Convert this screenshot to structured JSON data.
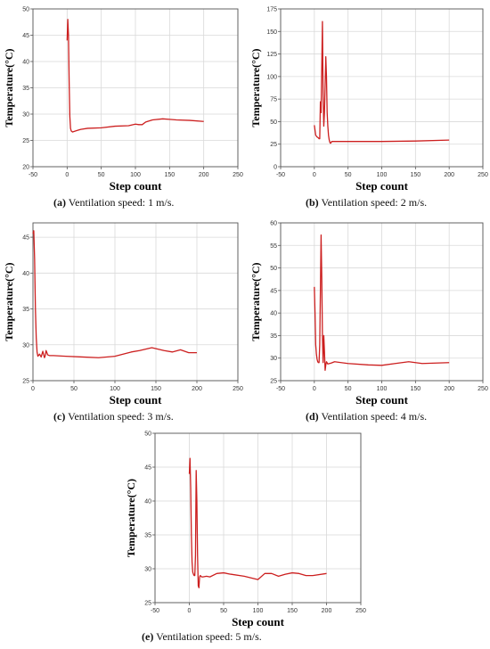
{
  "panels": [
    {
      "caption_letter": "(a)",
      "caption_text": " Ventilation speed: 1 m/s."
    },
    {
      "caption_letter": "(b)",
      "caption_text": " Ventilation speed: 2 m/s."
    },
    {
      "caption_letter": "(c)",
      "caption_text": " Ventilation speed: 3 m/s."
    },
    {
      "caption_letter": "(d)",
      "caption_text": " Ventilation speed: 4 m/s."
    },
    {
      "caption_letter": "(e)",
      "caption_text": " Ventilation speed: 5 m/s."
    }
  ],
  "chart_data": [
    {
      "type": "line",
      "xlabel": "Step count",
      "ylabel": "Temperature(°C)",
      "xlim": [
        -50,
        250
      ],
      "xticks": [
        -50,
        0,
        50,
        100,
        150,
        200,
        250
      ],
      "ylim": [
        20,
        50
      ],
      "yticks": [
        20,
        25,
        30,
        35,
        40,
        45,
        50
      ],
      "grid": true,
      "line_color": "#cc1f1f",
      "series": [
        {
          "x": [
            0,
            1,
            2,
            3,
            4,
            5,
            6,
            8,
            10,
            15,
            20,
            30,
            50,
            70,
            90,
            100,
            105,
            110,
            115,
            125,
            140,
            150,
            160,
            180,
            200
          ],
          "y": [
            44,
            48,
            45,
            36,
            29.5,
            27.3,
            26.8,
            26.6,
            26.7,
            26.9,
            27.1,
            27.3,
            27.4,
            27.7,
            27.8,
            28.1,
            28.0,
            28.0,
            28.5,
            28.9,
            29.1,
            29.0,
            28.9,
            28.8,
            28.6
          ]
        }
      ]
    },
    {
      "type": "line",
      "xlabel": "Step count",
      "ylabel": "Temperature(°C)",
      "xlim": [
        -50,
        250
      ],
      "xticks": [
        -50,
        0,
        50,
        100,
        150,
        200,
        250
      ],
      "ylim": [
        0,
        175
      ],
      "yticks": [
        0,
        25,
        50,
        75,
        100,
        125,
        150,
        175
      ],
      "grid": true,
      "line_color": "#cc1f1f",
      "series": [
        {
          "x": [
            0,
            2,
            4,
            6,
            7,
            8,
            9,
            10,
            11,
            12,
            13,
            14,
            15,
            16,
            17,
            18,
            19,
            20,
            21,
            22,
            23,
            24,
            26,
            30,
            50,
            100,
            150,
            200
          ],
          "y": [
            46,
            35,
            33,
            32,
            31,
            31,
            72,
            60,
            110,
            161,
            80,
            45,
            60,
            90,
            122,
            100,
            60,
            45,
            35,
            30,
            27,
            26,
            28,
            28,
            28,
            28,
            28.5,
            29.5
          ]
        }
      ]
    },
    {
      "type": "line",
      "xlabel": "Step count",
      "ylabel": "Temperature(°C)",
      "xlim": [
        0,
        250
      ],
      "xticks": [
        0,
        50,
        100,
        150,
        200,
        250
      ],
      "ylim": [
        25,
        47
      ],
      "yticks": [
        25,
        30,
        35,
        40,
        45
      ],
      "grid": true,
      "line_color": "#cc1f1f",
      "series": [
        {
          "x": [
            0,
            1,
            2,
            3,
            4,
            5,
            6,
            8,
            10,
            12,
            14,
            15,
            16,
            18,
            20,
            25,
            40,
            60,
            80,
            100,
            120,
            130,
            145,
            160,
            170,
            180,
            190,
            200
          ],
          "y": [
            45.5,
            45.9,
            42,
            35,
            31,
            29,
            28.4,
            28.7,
            28.3,
            29.1,
            28.2,
            28.5,
            29.2,
            28.6,
            28.5,
            28.5,
            28.4,
            28.3,
            28.2,
            28.4,
            29.0,
            29.2,
            29.6,
            29.2,
            29.0,
            29.3,
            28.9,
            28.9
          ]
        }
      ]
    },
    {
      "type": "line",
      "xlabel": "Step count",
      "ylabel": "Temperature(°C)",
      "xlim": [
        -50,
        250
      ],
      "xticks": [
        -50,
        0,
        50,
        100,
        150,
        200,
        250
      ],
      "ylim": [
        25,
        60
      ],
      "yticks": [
        25,
        30,
        35,
        40,
        45,
        50,
        55,
        60
      ],
      "grid": true,
      "line_color": "#cc1f1f",
      "series": [
        {
          "x": [
            0,
            1,
            2,
            3,
            4,
            5,
            6,
            7,
            8,
            9,
            10,
            11,
            12,
            13,
            14,
            15,
            16,
            17,
            18,
            20,
            25,
            30,
            50,
            80,
            100,
            120,
            140,
            160,
            180,
            200
          ],
          "y": [
            45.8,
            40,
            33,
            31,
            29.8,
            29.2,
            29.0,
            29.0,
            33,
            45,
            57.3,
            48,
            35,
            29,
            35,
            31.5,
            27.3,
            28.5,
            29.2,
            28.7,
            28.9,
            29.2,
            28.8,
            28.5,
            28.4,
            28.8,
            29.2,
            28.8,
            28.9,
            29.0
          ]
        }
      ]
    },
    {
      "type": "line",
      "xlabel": "Step count",
      "ylabel": "Temperature(°C)",
      "xlim": [
        -50,
        250
      ],
      "xticks": [
        -50,
        0,
        50,
        100,
        150,
        200,
        250
      ],
      "ylim": [
        25,
        50
      ],
      "yticks": [
        25,
        30,
        35,
        40,
        45,
        50
      ],
      "grid": true,
      "line_color": "#cc1f1f",
      "series": [
        {
          "x": [
            0,
            1,
            2,
            3,
            4,
            5,
            6,
            7,
            8,
            9,
            10,
            11,
            12,
            13,
            14,
            15,
            16,
            18,
            20,
            25,
            30,
            40,
            50,
            60,
            80,
            100,
            110,
            120,
            130,
            140,
            150,
            160,
            170,
            180,
            200
          ],
          "y": [
            44,
            46.3,
            42,
            35,
            31,
            29.5,
            29.2,
            29.0,
            29.0,
            32,
            44.5,
            40,
            32,
            27.5,
            27.2,
            28.8,
            29.0,
            28.8,
            28.8,
            28.9,
            28.8,
            29.3,
            29.4,
            29.2,
            28.9,
            28.4,
            29.3,
            29.3,
            28.9,
            29.2,
            29.4,
            29.3,
            29.0,
            29.0,
            29.3
          ]
        }
      ]
    }
  ]
}
